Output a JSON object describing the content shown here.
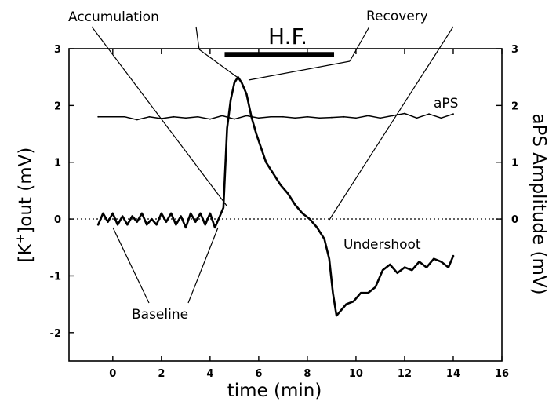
{
  "chart_data": {
    "type": "line",
    "title": "",
    "xlabel": "time (min)",
    "ylabel_left_parts": [
      "[K",
      "+",
      "]out (mV)"
    ],
    "ylabel_right": "aPS  Amplitude (mV)",
    "xlim": [
      -1.8,
      16
    ],
    "ylim": [
      -2.5,
      3
    ],
    "ylim_right": [
      -2.5,
      3
    ],
    "x_ticks": [
      0,
      2,
      4,
      6,
      8,
      10,
      12,
      14,
      16
    ],
    "y_ticks": [
      3,
      2,
      1,
      0,
      -1,
      -2
    ],
    "y_ticks_right": [
      3,
      2,
      1,
      0
    ],
    "zero_line": "dotted",
    "stimulus_bar": {
      "label": "H.F.",
      "x_start": 4.6,
      "x_end": 9.1,
      "y": 2.9
    },
    "series": [
      {
        "key": "k_out",
        "x": [
          -0.6,
          -0.4,
          -0.2,
          0.0,
          0.2,
          0.4,
          0.6,
          0.8,
          1.0,
          1.2,
          1.4,
          1.6,
          1.8,
          2.0,
          2.2,
          2.4,
          2.6,
          2.8,
          3.0,
          3.2,
          3.4,
          3.6,
          3.8,
          4.0,
          4.2,
          4.4,
          4.55,
          4.7,
          4.85,
          5.0,
          5.15,
          5.3,
          5.5,
          5.7,
          5.9,
          6.1,
          6.3,
          6.6,
          6.9,
          7.2,
          7.5,
          7.8,
          8.1,
          8.4,
          8.7,
          8.9,
          9.05,
          9.2,
          9.4,
          9.6,
          9.9,
          10.2,
          10.5,
          10.8,
          11.1,
          11.4,
          11.7,
          12.0,
          12.3,
          12.6,
          12.9,
          13.2,
          13.5,
          13.8,
          14.0
        ],
        "y": [
          -0.1,
          0.1,
          -0.05,
          0.1,
          -0.1,
          0.05,
          -0.1,
          0.05,
          -0.05,
          0.1,
          -0.1,
          0.0,
          -0.1,
          0.1,
          -0.05,
          0.1,
          -0.1,
          0.05,
          -0.15,
          0.1,
          -0.05,
          0.1,
          -0.1,
          0.1,
          -0.15,
          0.05,
          0.2,
          1.6,
          2.1,
          2.4,
          2.5,
          2.4,
          2.2,
          1.8,
          1.5,
          1.25,
          1.0,
          0.8,
          0.6,
          0.45,
          0.25,
          0.1,
          0.0,
          -0.15,
          -0.35,
          -0.7,
          -1.3,
          -1.7,
          -1.6,
          -1.5,
          -1.45,
          -1.3,
          -1.3,
          -1.2,
          -0.9,
          -0.8,
          -0.95,
          -0.85,
          -0.9,
          -0.75,
          -0.85,
          -0.7,
          -0.75,
          -0.85,
          -0.65
        ]
      },
      {
        "key": "aps",
        "name": "aPS",
        "x": [
          -0.6,
          0.5,
          1.0,
          1.5,
          2.0,
          2.5,
          3.0,
          3.5,
          4.0,
          4.5,
          5.0,
          5.5,
          6.0,
          6.5,
          7.0,
          7.5,
          8.0,
          8.5,
          9.0,
          9.5,
          10.0,
          10.5,
          11.0,
          11.5,
          12.0,
          12.5,
          13.0,
          13.5,
          14.0
        ],
        "y": [
          1.8,
          1.8,
          1.75,
          1.8,
          1.77,
          1.8,
          1.78,
          1.8,
          1.76,
          1.82,
          1.76,
          1.82,
          1.78,
          1.8,
          1.8,
          1.78,
          1.8,
          1.78,
          1.79,
          1.8,
          1.78,
          1.82,
          1.78,
          1.82,
          1.86,
          1.78,
          1.85,
          1.78,
          1.85
        ]
      }
    ],
    "annotations": [
      {
        "key": "accumulation",
        "text": "Accumulation"
      },
      {
        "key": "recovery",
        "text": "Recovery"
      },
      {
        "key": "undershoot",
        "text": "Undershoot"
      },
      {
        "key": "baseline",
        "text": "Baseline"
      },
      {
        "key": "aps_label",
        "text": "aPS"
      }
    ]
  }
}
